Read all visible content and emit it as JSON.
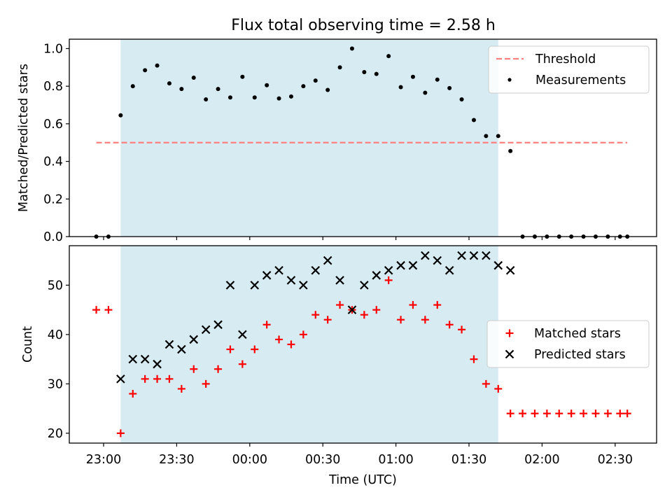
{
  "figure_title": "Flux total observing time = 2.58 h",
  "colors": {
    "threshold": "#ff7f7f",
    "measurement": "#000000",
    "matched": "#ff0000",
    "predicted": "#000000",
    "span": "#add8e6"
  },
  "chart_data": [
    {
      "type": "scatter",
      "title": "Flux total observing time = 2.58 h",
      "xlabel": "",
      "ylabel": "Matched/Predicted stars",
      "x_ticks": [
        "23:00",
        "23:30",
        "00:00",
        "00:30",
        "01:00",
        "01:30",
        "02:00",
        "02:30"
      ],
      "y_ticks": [
        "0.0",
        "0.2",
        "0.4",
        "0.6",
        "0.8",
        "1.0"
      ],
      "ylim": [
        0,
        1.05
      ],
      "grid": false,
      "legend": "top-right",
      "shaded_span": [
        "23:07",
        "01:42"
      ],
      "threshold": {
        "name": "Threshold",
        "y": 0.5,
        "x_range": [
          "22:57",
          "02:35"
        ],
        "style": "dashed"
      },
      "series": [
        {
          "name": "Measurements",
          "x": [
            "22:57",
            "23:02",
            "23:07",
            "23:12",
            "23:17",
            "23:22",
            "23:27",
            "23:32",
            "23:37",
            "23:42",
            "23:47",
            "23:52",
            "23:57",
            "00:02",
            "00:07",
            "00:12",
            "00:17",
            "00:22",
            "00:27",
            "00:32",
            "00:37",
            "00:42",
            "00:47",
            "00:52",
            "00:57",
            "01:02",
            "01:07",
            "01:12",
            "01:17",
            "01:22",
            "01:27",
            "01:32",
            "01:37",
            "01:42",
            "01:47",
            "01:52",
            "01:57",
            "02:02",
            "02:07",
            "02:12",
            "02:17",
            "02:22",
            "02:27",
            "02:32",
            "02:35"
          ],
          "y": [
            0.0,
            0.0,
            0.645,
            0.8,
            0.885,
            0.91,
            0.815,
            0.785,
            0.845,
            0.73,
            0.785,
            0.74,
            0.85,
            0.74,
            0.805,
            0.735,
            0.745,
            0.8,
            0.83,
            0.78,
            0.9,
            1.0,
            0.875,
            0.865,
            0.96,
            0.795,
            0.85,
            0.765,
            0.835,
            0.79,
            0.73,
            0.62,
            0.535,
            0.535,
            0.455,
            0.0,
            0.0,
            0.0,
            0.0,
            0.0,
            0.0,
            0.0,
            0.0,
            0.0,
            0.0
          ]
        }
      ]
    },
    {
      "type": "scatter",
      "title": "",
      "xlabel": "Time (UTC)",
      "ylabel": "Count",
      "x_ticks": [
        "23:00",
        "23:30",
        "00:00",
        "00:30",
        "01:00",
        "01:30",
        "02:00",
        "02:30"
      ],
      "y_ticks": [
        "20",
        "30",
        "40",
        "50"
      ],
      "ylim": [
        18,
        58
      ],
      "grid": false,
      "legend": "center-right",
      "shaded_span": [
        "23:07",
        "01:42"
      ],
      "series": [
        {
          "name": "Matched stars",
          "marker": "+",
          "x": [
            "22:57",
            "23:02",
            "23:07",
            "23:12",
            "23:17",
            "23:22",
            "23:27",
            "23:32",
            "23:37",
            "23:42",
            "23:47",
            "23:52",
            "23:57",
            "00:02",
            "00:07",
            "00:12",
            "00:17",
            "00:22",
            "00:27",
            "00:32",
            "00:37",
            "00:42",
            "00:47",
            "00:52",
            "00:57",
            "01:02",
            "01:07",
            "01:12",
            "01:17",
            "01:22",
            "01:27",
            "01:32",
            "01:37",
            "01:42",
            "01:47",
            "01:52",
            "01:57",
            "02:02",
            "02:07",
            "02:12",
            "02:17",
            "02:22",
            "02:27",
            "02:32",
            "02:35"
          ],
          "y": [
            45,
            45,
            20,
            28,
            31,
            31,
            31,
            29,
            33,
            30,
            33,
            37,
            34,
            37,
            42,
            39,
            38,
            40,
            44,
            43,
            46,
            45,
            44,
            45,
            51,
            43,
            46,
            43,
            46,
            42,
            41,
            35,
            30,
            29,
            24,
            24,
            24,
            24,
            24,
            24,
            24,
            24,
            24,
            24,
            24
          ]
        },
        {
          "name": "Predicted stars",
          "marker": "x",
          "x": [
            "23:07",
            "23:12",
            "23:17",
            "23:22",
            "23:27",
            "23:32",
            "23:37",
            "23:42",
            "23:47",
            "23:52",
            "23:57",
            "00:02",
            "00:07",
            "00:12",
            "00:17",
            "00:22",
            "00:27",
            "00:32",
            "00:37",
            "00:42",
            "00:47",
            "00:52",
            "00:57",
            "01:02",
            "01:07",
            "01:12",
            "01:17",
            "01:22",
            "01:27",
            "01:32",
            "01:37",
            "01:42",
            "01:47"
          ],
          "y": [
            31,
            35,
            35,
            34,
            38,
            37,
            39,
            41,
            42,
            50,
            40,
            50,
            52,
            53,
            51,
            50,
            53,
            55,
            51,
            45,
            50,
            52,
            53,
            54,
            54,
            56,
            55,
            53,
            56,
            56,
            56,
            54,
            53
          ]
        }
      ]
    }
  ]
}
